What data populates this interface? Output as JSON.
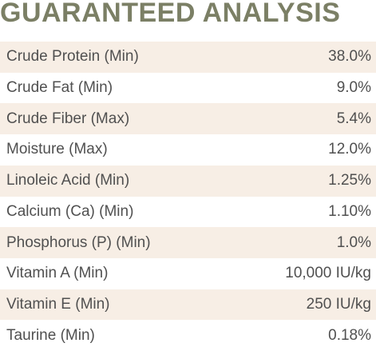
{
  "header": {
    "title": "GUARANTEED ANALYSIS"
  },
  "table": {
    "rows": [
      [
        "Crude Protein (Min)",
        "38.0%"
      ],
      [
        "Crude Fat (Min)",
        "9.0%"
      ],
      [
        "Crude Fiber (Max)",
        "5.4%"
      ],
      [
        "Moisture (Max)",
        "12.0%"
      ],
      [
        "Linoleic Acid (Min)",
        "1.25%"
      ],
      [
        "Calcium (Ca) (Min)",
        "1.10%"
      ],
      [
        "Phosphorus (P) (Min)",
        "1.0%"
      ],
      [
        "Vitamin A (Min)",
        "10,000 IU/kg"
      ],
      [
        "Vitamin E (Min)",
        "250 IU/kg"
      ],
      [
        "Taurine (Min)",
        "0.18%"
      ]
    ]
  }
}
